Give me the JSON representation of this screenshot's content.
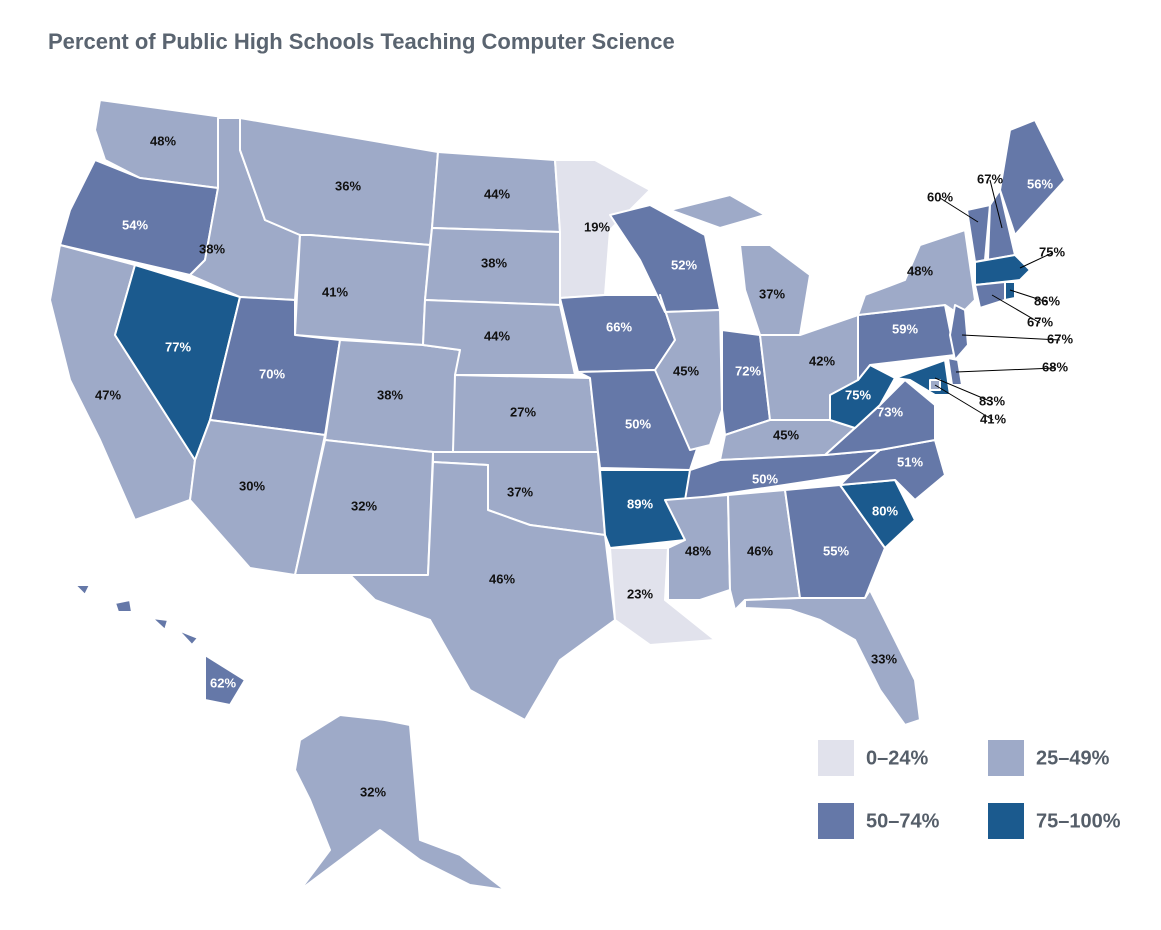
{
  "chart_data": {
    "type": "choropleth",
    "title": "Percent of Public High Schools Teaching Computer Science",
    "values": [
      48,
      54,
      47,
      77,
      38,
      36,
      41,
      70,
      30,
      38,
      32,
      44,
      38,
      44,
      27,
      37,
      46,
      19,
      66,
      50,
      89,
      23,
      52,
      45,
      37,
      72,
      42,
      45,
      50,
      48,
      46,
      55,
      33,
      80,
      51,
      73,
      75,
      59,
      48,
      60,
      67,
      56,
      75,
      67,
      86,
      67,
      68,
      83,
      41,
      62,
      32
    ],
    "value_labels": [
      "48%",
      "54%",
      "47%",
      "77%",
      "38%",
      "36%",
      "41%",
      "70%",
      "30%",
      "38%",
      "32%",
      "44%",
      "38%",
      "44%",
      "27%",
      "37%",
      "46%",
      "19%",
      "66%",
      "50%",
      "89%",
      "23%",
      "52%",
      "45%",
      "37%",
      "72%",
      "42%",
      "45%",
      "50%",
      "48%",
      "46%",
      "55%",
      "33%",
      "80%",
      "51%",
      "73%",
      "75%",
      "59%",
      "48%",
      "60%",
      "67%",
      "56%",
      "75%",
      "67%",
      "86%",
      "67%",
      "68%",
      "83%",
      "41%",
      "62%",
      "32%"
    ],
    "legend": [
      {
        "label": "0–24%",
        "range": [
          0,
          24
        ],
        "color": "#e1e2ec"
      },
      {
        "label": "25–49%",
        "range": [
          25,
          49
        ],
        "color": "#9eaac8"
      },
      {
        "label": "50–74%",
        "range": [
          50,
          74
        ],
        "color": "#6578a8"
      },
      {
        "label": "75–100%",
        "range": [
          75,
          100
        ],
        "color": "#1b5a8e"
      }
    ]
  }
}
